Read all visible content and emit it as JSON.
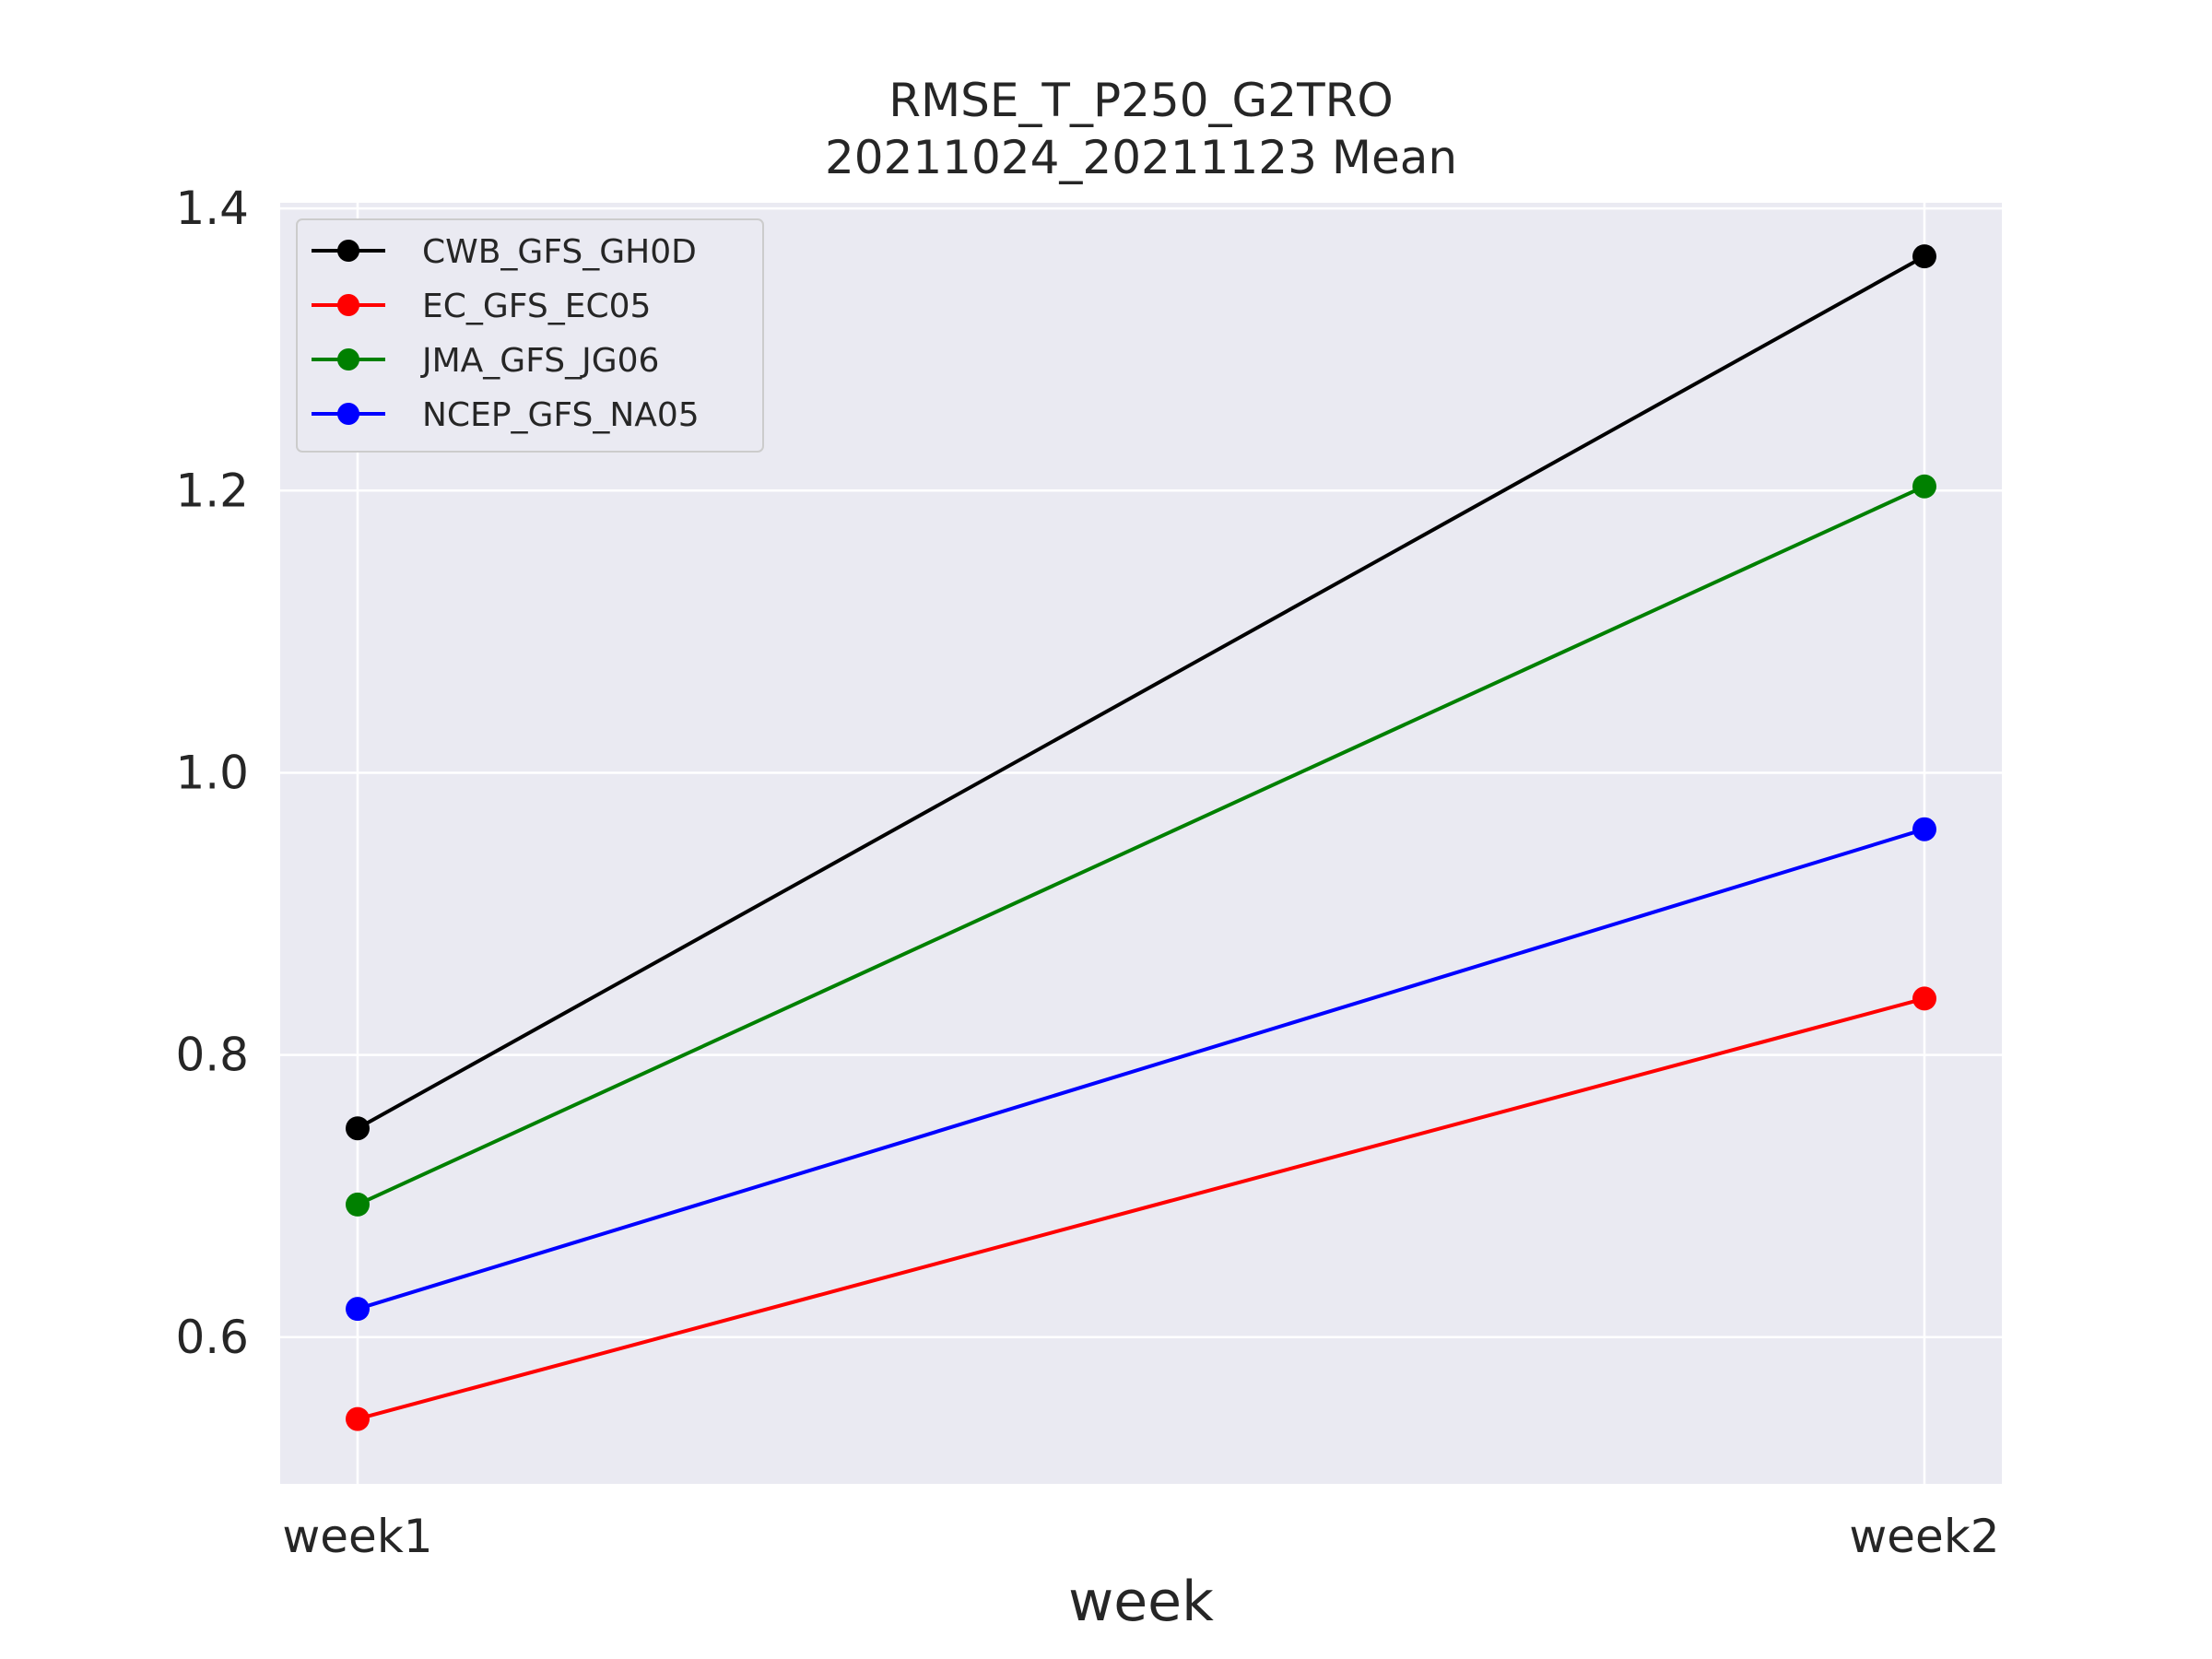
{
  "chart_data": {
    "type": "line",
    "title": "RMSE_T_P250_G2TRO",
    "subtitle": "20211024_20211123 Mean",
    "xlabel": "week",
    "ylabel": "",
    "categories": [
      "week1",
      "week2"
    ],
    "ylim": [
      0.496,
      1.404
    ],
    "yticks": [
      0.6,
      0.8,
      1.0,
      1.2,
      1.4
    ],
    "ytick_labels": [
      "0.6",
      "0.8",
      "1.0",
      "1.2",
      "1.4"
    ],
    "grid": true,
    "legend_position": "top-left",
    "background": "#eaeaf2",
    "series": [
      {
        "name": "CWB_GFS_GH0D",
        "color": "#000000",
        "values": [
          0.748,
          1.366
        ]
      },
      {
        "name": "EC_GFS_EC05",
        "color": "#ff0000",
        "values": [
          0.542,
          0.84
        ]
      },
      {
        "name": "JMA_GFS_JG06",
        "color": "#008000",
        "values": [
          0.694,
          1.203
        ]
      },
      {
        "name": "NCEP_GFS_NA05",
        "color": "#0000ff",
        "values": [
          0.62,
          0.96
        ]
      }
    ]
  }
}
